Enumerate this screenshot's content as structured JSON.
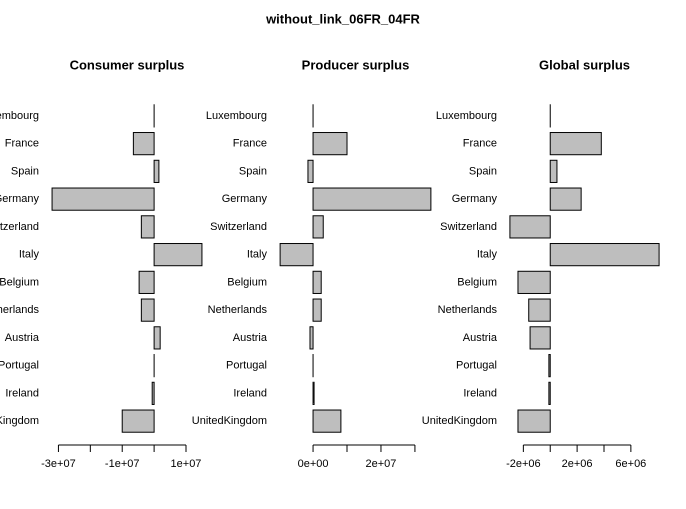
{
  "title": "without_link_06FR_04FR",
  "chart_data": [
    {
      "type": "bar",
      "orientation": "horizontal",
      "title": "Consumer surplus",
      "color": "#bebebe",
      "categories": [
        "Luxembourg",
        "France",
        "Spain",
        "Germany",
        "Switzerland",
        "Italy",
        "Belgium",
        "Netherlands",
        "Austria",
        "Portugal",
        "Ireland",
        "UnitedKingdom"
      ],
      "values": [
        0,
        -6500000,
        1500000,
        -32000000,
        -4000000,
        15000000,
        -4700000,
        -4000000,
        1900000,
        0,
        -600000,
        -10000000
      ],
      "xlim": [
        -33900000,
        16900000
      ],
      "xticks": [
        {
          "value": -30000000,
          "label": "-3e+07"
        },
        {
          "value": -20000000,
          "label": null
        },
        {
          "value": -10000000,
          "label": "-1e+07"
        },
        {
          "value": 0,
          "label": null
        },
        {
          "value": 10000000,
          "label": "1e+07"
        }
      ]
    },
    {
      "type": "bar",
      "orientation": "horizontal",
      "title": "Producer surplus",
      "color": "#bebebe",
      "categories": [
        "Luxembourg",
        "France",
        "Spain",
        "Germany",
        "Switzerland",
        "Italy",
        "Belgium",
        "Netherlands",
        "Austria",
        "Portugal",
        "Ireland",
        "UnitedKingdom"
      ],
      "values": [
        0,
        10000000,
        -1500000,
        34700000,
        3000000,
        -9700000,
        2400000,
        2400000,
        -900000,
        0,
        300000,
        8200000
      ],
      "xlim": [
        -11500000,
        36500000
      ],
      "xticks": [
        {
          "value": 0,
          "label": "0e+00"
        },
        {
          "value": 10000000,
          "label": null
        },
        {
          "value": 20000000,
          "label": "2e+07"
        },
        {
          "value": 30000000,
          "label": null
        }
      ]
    },
    {
      "type": "bar",
      "orientation": "horizontal",
      "title": "Global surplus",
      "color": "#bebebe",
      "categories": [
        "Luxembourg",
        "France",
        "Spain",
        "Germany",
        "Switzerland",
        "Italy",
        "Belgium",
        "Netherlands",
        "Austria",
        "Portugal",
        "Ireland",
        "UnitedKingdom"
      ],
      "values": [
        0,
        3800000,
        500000,
        2300000,
        -3000000,
        8100000,
        -2400000,
        -1600000,
        -1500000,
        -100000,
        -100000,
        -2400000
      ],
      "xlim": [
        -3440000,
        8540000
      ],
      "xticks": [
        {
          "value": -2000000,
          "label": "-2e+06"
        },
        {
          "value": 0,
          "label": null
        },
        {
          "value": 2000000,
          "label": "2e+06"
        },
        {
          "value": 4000000,
          "label": null
        },
        {
          "value": 6000000,
          "label": "6e+06"
        }
      ]
    }
  ]
}
